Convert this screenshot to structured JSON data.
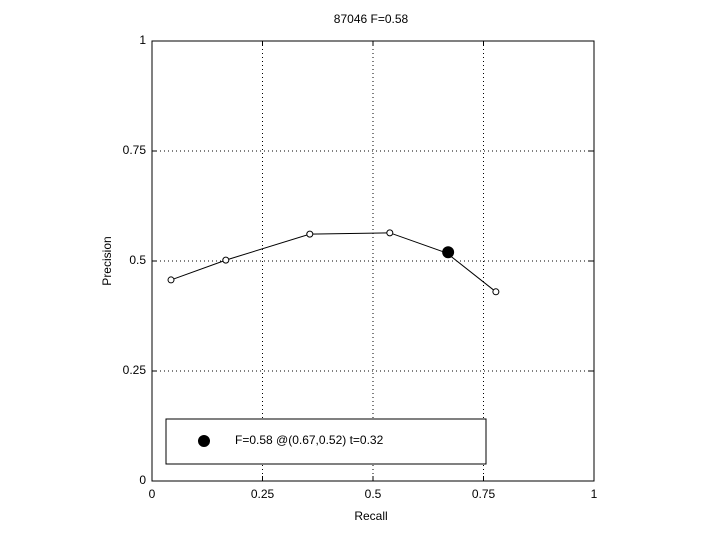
{
  "chart_data": {
    "type": "line",
    "title": "87046 F=0.58",
    "x_label": "Recall",
    "y_label": "Precision",
    "xlim": [
      0,
      1
    ],
    "ylim": [
      0,
      1
    ],
    "xticks": [
      0,
      0.25,
      0.5,
      0.75,
      1
    ],
    "yticks": [
      0,
      0.25,
      0.5,
      0.75,
      1
    ],
    "grid": true,
    "legend_position": "lower left",
    "series": [
      {
        "color": "#000000",
        "marker": "open",
        "x": [
          0.043,
          0.167,
          0.357,
          0.538,
          0.667,
          0.778
        ],
        "values": [
          0.457,
          0.502,
          0.561,
          0.564,
          0.518,
          0.43
        ]
      },
      {
        "name": "F=0.58 @(0.67,0.52) t=0.32",
        "color": "#000000",
        "marker": "filled",
        "x": [
          0.67
        ],
        "values": [
          0.52
        ]
      }
    ]
  }
}
